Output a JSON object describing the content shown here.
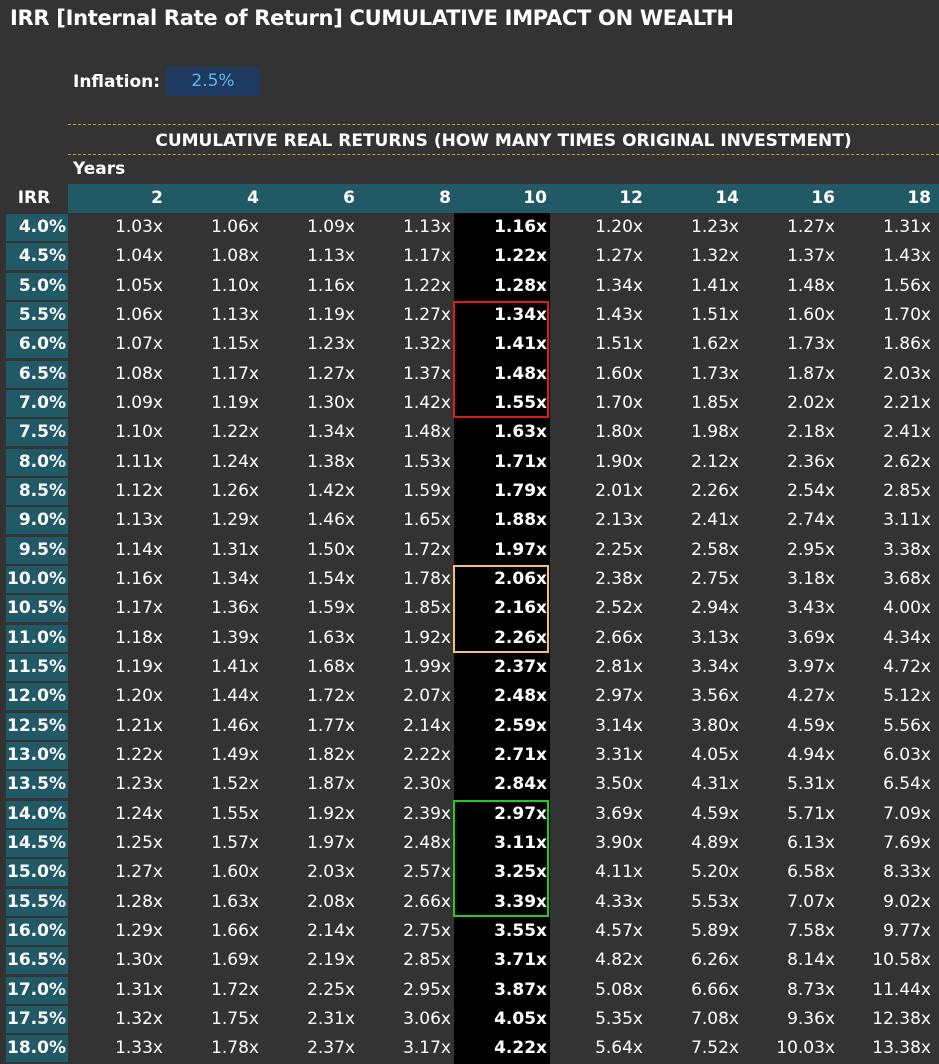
{
  "title": "IRR [Internal Rate of Return] CUMULATIVE IMPACT ON WEALTH",
  "inflation": {
    "label": "Inflation:",
    "value": "2.5%"
  },
  "table": {
    "section_title": "CUMULATIVE REAL RETURNS (HOW MANY TIMES ORIGINAL INVESTMENT)",
    "years_label": "Years",
    "irr_label": "IRR",
    "columns": [
      "2",
      "4",
      "6",
      "8",
      "10",
      "12",
      "14",
      "16",
      "18"
    ],
    "highlight_column": "10",
    "rows": [
      {
        "irr": "4.0%",
        "values": [
          "1.03x",
          "1.06x",
          "1.09x",
          "1.13x",
          "1.16x",
          "1.20x",
          "1.23x",
          "1.27x",
          "1.31x"
        ]
      },
      {
        "irr": "4.5%",
        "values": [
          "1.04x",
          "1.08x",
          "1.13x",
          "1.17x",
          "1.22x",
          "1.27x",
          "1.32x",
          "1.37x",
          "1.43x"
        ]
      },
      {
        "irr": "5.0%",
        "values": [
          "1.05x",
          "1.10x",
          "1.16x",
          "1.22x",
          "1.28x",
          "1.34x",
          "1.41x",
          "1.48x",
          "1.56x"
        ]
      },
      {
        "irr": "5.5%",
        "values": [
          "1.06x",
          "1.13x",
          "1.19x",
          "1.27x",
          "1.34x",
          "1.43x",
          "1.51x",
          "1.60x",
          "1.70x"
        ]
      },
      {
        "irr": "6.0%",
        "values": [
          "1.07x",
          "1.15x",
          "1.23x",
          "1.32x",
          "1.41x",
          "1.51x",
          "1.62x",
          "1.73x",
          "1.86x"
        ]
      },
      {
        "irr": "6.5%",
        "values": [
          "1.08x",
          "1.17x",
          "1.27x",
          "1.37x",
          "1.48x",
          "1.60x",
          "1.73x",
          "1.87x",
          "2.03x"
        ]
      },
      {
        "irr": "7.0%",
        "values": [
          "1.09x",
          "1.19x",
          "1.30x",
          "1.42x",
          "1.55x",
          "1.70x",
          "1.85x",
          "2.02x",
          "2.21x"
        ]
      },
      {
        "irr": "7.5%",
        "values": [
          "1.10x",
          "1.22x",
          "1.34x",
          "1.48x",
          "1.63x",
          "1.80x",
          "1.98x",
          "2.18x",
          "2.41x"
        ]
      },
      {
        "irr": "8.0%",
        "values": [
          "1.11x",
          "1.24x",
          "1.38x",
          "1.53x",
          "1.71x",
          "1.90x",
          "2.12x",
          "2.36x",
          "2.62x"
        ]
      },
      {
        "irr": "8.5%",
        "values": [
          "1.12x",
          "1.26x",
          "1.42x",
          "1.59x",
          "1.79x",
          "2.01x",
          "2.26x",
          "2.54x",
          "2.85x"
        ]
      },
      {
        "irr": "9.0%",
        "values": [
          "1.13x",
          "1.29x",
          "1.46x",
          "1.65x",
          "1.88x",
          "2.13x",
          "2.41x",
          "2.74x",
          "3.11x"
        ]
      },
      {
        "irr": "9.5%",
        "values": [
          "1.14x",
          "1.31x",
          "1.50x",
          "1.72x",
          "1.97x",
          "2.25x",
          "2.58x",
          "2.95x",
          "3.38x"
        ]
      },
      {
        "irr": "10.0%",
        "values": [
          "1.16x",
          "1.34x",
          "1.54x",
          "1.78x",
          "2.06x",
          "2.38x",
          "2.75x",
          "3.18x",
          "3.68x"
        ]
      },
      {
        "irr": "10.5%",
        "values": [
          "1.17x",
          "1.36x",
          "1.59x",
          "1.85x",
          "2.16x",
          "2.52x",
          "2.94x",
          "3.43x",
          "4.00x"
        ]
      },
      {
        "irr": "11.0%",
        "values": [
          "1.18x",
          "1.39x",
          "1.63x",
          "1.92x",
          "2.26x",
          "2.66x",
          "3.13x",
          "3.69x",
          "4.34x"
        ]
      },
      {
        "irr": "11.5%",
        "values": [
          "1.19x",
          "1.41x",
          "1.68x",
          "1.99x",
          "2.37x",
          "2.81x",
          "3.34x",
          "3.97x",
          "4.72x"
        ]
      },
      {
        "irr": "12.0%",
        "values": [
          "1.20x",
          "1.44x",
          "1.72x",
          "2.07x",
          "2.48x",
          "2.97x",
          "3.56x",
          "4.27x",
          "5.12x"
        ]
      },
      {
        "irr": "12.5%",
        "values": [
          "1.21x",
          "1.46x",
          "1.77x",
          "2.14x",
          "2.59x",
          "3.14x",
          "3.80x",
          "4.59x",
          "5.56x"
        ]
      },
      {
        "irr": "13.0%",
        "values": [
          "1.22x",
          "1.49x",
          "1.82x",
          "2.22x",
          "2.71x",
          "3.31x",
          "4.05x",
          "4.94x",
          "6.03x"
        ]
      },
      {
        "irr": "13.5%",
        "values": [
          "1.23x",
          "1.52x",
          "1.87x",
          "2.30x",
          "2.84x",
          "3.50x",
          "4.31x",
          "5.31x",
          "6.54x"
        ]
      },
      {
        "irr": "14.0%",
        "values": [
          "1.24x",
          "1.55x",
          "1.92x",
          "2.39x",
          "2.97x",
          "3.69x",
          "4.59x",
          "5.71x",
          "7.09x"
        ]
      },
      {
        "irr": "14.5%",
        "values": [
          "1.25x",
          "1.57x",
          "1.97x",
          "2.48x",
          "3.11x",
          "3.90x",
          "4.89x",
          "6.13x",
          "7.69x"
        ]
      },
      {
        "irr": "15.0%",
        "values": [
          "1.27x",
          "1.60x",
          "2.03x",
          "2.57x",
          "3.25x",
          "4.11x",
          "5.20x",
          "6.58x",
          "8.33x"
        ]
      },
      {
        "irr": "15.5%",
        "values": [
          "1.28x",
          "1.63x",
          "2.08x",
          "2.66x",
          "3.39x",
          "4.33x",
          "5.53x",
          "7.07x",
          "9.02x"
        ]
      },
      {
        "irr": "16.0%",
        "values": [
          "1.29x",
          "1.66x",
          "2.14x",
          "2.75x",
          "3.55x",
          "4.57x",
          "5.89x",
          "7.58x",
          "9.77x"
        ]
      },
      {
        "irr": "16.5%",
        "values": [
          "1.30x",
          "1.69x",
          "2.19x",
          "2.85x",
          "3.71x",
          "4.82x",
          "6.26x",
          "8.14x",
          "10.58x"
        ]
      },
      {
        "irr": "17.0%",
        "values": [
          "1.31x",
          "1.72x",
          "2.25x",
          "2.95x",
          "3.87x",
          "5.08x",
          "6.66x",
          "8.73x",
          "11.44x"
        ]
      },
      {
        "irr": "17.5%",
        "values": [
          "1.32x",
          "1.75x",
          "2.31x",
          "3.06x",
          "4.05x",
          "5.35x",
          "7.08x",
          "9.36x",
          "12.38x"
        ]
      },
      {
        "irr": "18.0%",
        "values": [
          "1.33x",
          "1.78x",
          "2.37x",
          "3.17x",
          "4.22x",
          "5.64x",
          "7.52x",
          "10.03x",
          "13.38x"
        ]
      }
    ],
    "highlight_boxes": [
      {
        "color": "#e01b1b",
        "from_irr": "5.5%",
        "to_irr": "7.0%"
      },
      {
        "color": "#f5c26b",
        "from_irr": "10.0%",
        "to_irr": "11.0%"
      },
      {
        "color": "#22cc22",
        "from_irr": "14.0%",
        "to_irr": "15.5%"
      }
    ]
  },
  "colors": {
    "background": "#333333",
    "header_band": "#215967",
    "inflation_box": "#1f3a60",
    "inflation_text": "#5fb8f0",
    "rule": "#c9a227",
    "highlight_column_bg": "#000000"
  }
}
